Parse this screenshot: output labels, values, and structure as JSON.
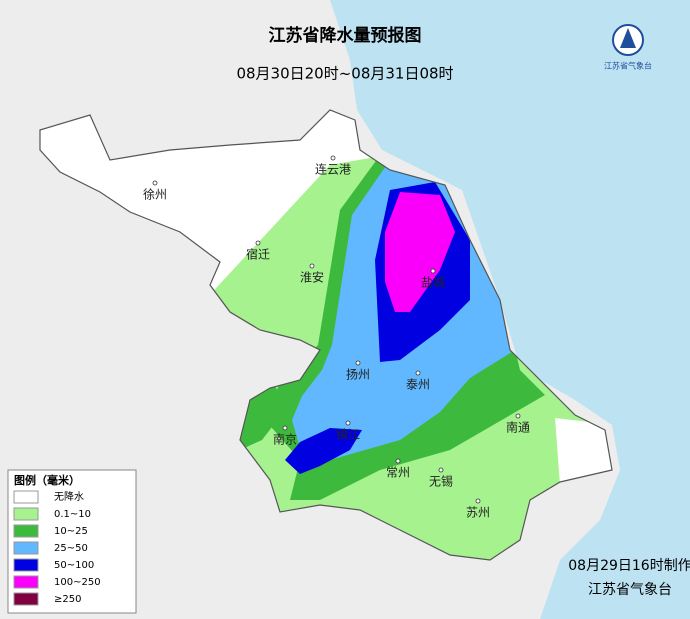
{
  "header": {
    "title": "江苏省降水量预报图",
    "subtitle": "08月30日20时~08月31日08时"
  },
  "logo": {
    "text": "江苏省气象台"
  },
  "legend": {
    "title": "图例（毫米）",
    "items": [
      {
        "label": "无降水",
        "color": "#ffffff"
      },
      {
        "label": "0.1~10",
        "color": "#a6f28f"
      },
      {
        "label": "10~25",
        "color": "#3dba3d"
      },
      {
        "label": "25~50",
        "color": "#61b8ff"
      },
      {
        "label": "50~100",
        "color": "#0000e1"
      },
      {
        "label": "100~250",
        "color": "#fa00fa"
      },
      {
        "label": "≥250",
        "color": "#800040"
      }
    ]
  },
  "cities": [
    "徐州",
    "连云港",
    "宿迁",
    "淮安",
    "盐城",
    "扬州",
    "泰州",
    "南京",
    "镇江",
    "常州",
    "无锡",
    "苏州",
    "南通"
  ],
  "footer": {
    "made": "08月29日16时制作",
    "issuer": "江苏省气象台"
  }
}
